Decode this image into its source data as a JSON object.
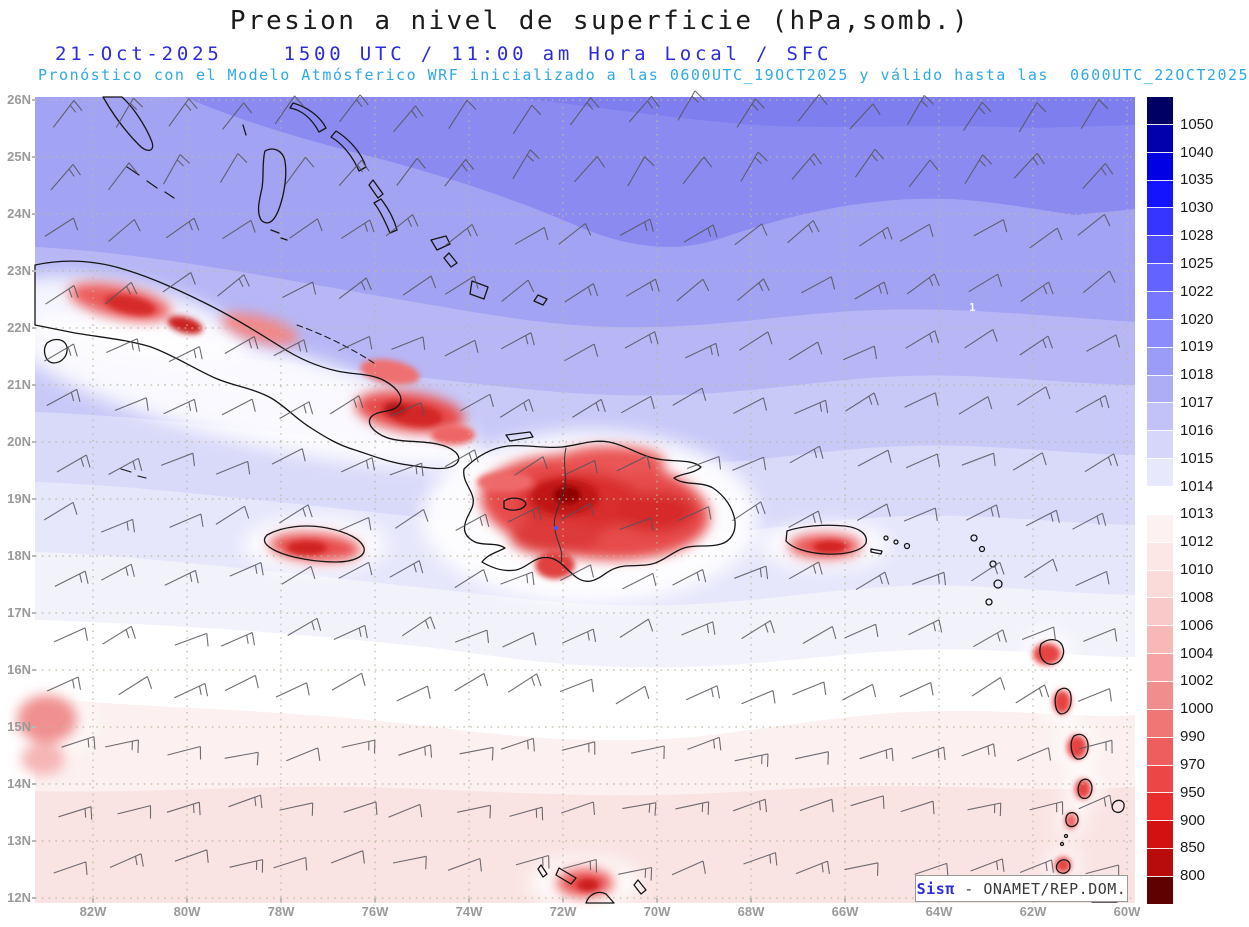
{
  "header": {
    "title": "Presion a nivel de superficie (hPa,somb.)",
    "line2": "21-Oct-2025    1500 UTC / 11:00 am Hora Local / SFC",
    "line3": "Pronóstico con el Modelo Atmósferico WRF inicializado a las 0600UTC_19OCT2025 y válido hasta las  0600UTC_22OCT2025",
    "line2_color": "#2c2cdc",
    "line3_color": "#2fa8e8",
    "title_color": "#1b1b1b"
  },
  "map": {
    "lat_labels": [
      "26N",
      "25N",
      "24N",
      "23N",
      "22N",
      "21N",
      "20N",
      "19N",
      "18N",
      "17N",
      "16N",
      "15N",
      "14N",
      "13N",
      "12N"
    ],
    "lon_labels": [
      "82W",
      "80W",
      "78W",
      "76W",
      "74W",
      "72W",
      "70W",
      "68W",
      "66W",
      "64W",
      "62W",
      "60W"
    ],
    "annotation": "1",
    "axis_color": "#9a9a9a",
    "grid_color": "#b9b9a0",
    "coast_color": "#151515",
    "barb_color": "#54545c"
  },
  "colorbar": {
    "labels": [
      "1050",
      "1040",
      "1035",
      "1030",
      "1028",
      "1025",
      "1022",
      "1020",
      "1019",
      "1018",
      "1017",
      "1016",
      "1015",
      "1014",
      "1013",
      "1012",
      "1010",
      "1008",
      "1006",
      "1004",
      "1002",
      "1000",
      "990",
      "970",
      "950",
      "900",
      "850",
      "800"
    ],
    "colors": [
      "#000063",
      "#0000ad",
      "#0000e3",
      "#1414ff",
      "#3535ff",
      "#4d4dff",
      "#6363ff",
      "#7878ff",
      "#8c8cfc",
      "#9b9bf8",
      "#adadf6",
      "#c2c2f9",
      "#d6d6fb",
      "#e8e8fd",
      "#ffffff",
      "#fdf2f2",
      "#fce6e6",
      "#fbdada",
      "#f9c9c9",
      "#f7b8b8",
      "#f5a3a3",
      "#f28d8d",
      "#f07575",
      "#ee5e5e",
      "#ec4646",
      "#e92c2c",
      "#d41111",
      "#b80b0b",
      "#5f0101"
    ]
  },
  "attribution": {
    "brand": "Sisπ",
    "rest": " - ONAMET/REP.DOM."
  },
  "wind_barbs": {
    "rows": 14,
    "cols": 19,
    "spacing": 57,
    "shaft": 34,
    "seed": 11
  }
}
